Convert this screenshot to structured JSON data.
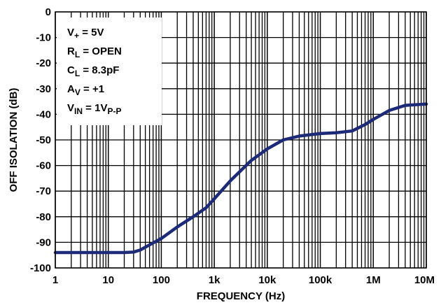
{
  "chart_data": {
    "type": "line",
    "xlabel": "FREQUENCY (Hz)",
    "ylabel": "OFF ISOLATION (dB)",
    "x_scale": "log",
    "xlim": [
      1,
      10000000
    ],
    "ylim": [
      -100,
      0
    ],
    "grid": true,
    "x_ticks": [
      {
        "value": 1,
        "label": "1"
      },
      {
        "value": 10,
        "label": "10"
      },
      {
        "value": 100,
        "label": "100"
      },
      {
        "value": 1000,
        "label": "1k"
      },
      {
        "value": 10000,
        "label": "10k"
      },
      {
        "value": 100000,
        "label": "100k"
      },
      {
        "value": 1000000,
        "label": "1M"
      },
      {
        "value": 10000000,
        "label": "10M"
      }
    ],
    "y_ticks": [
      {
        "value": 0,
        "label": "0"
      },
      {
        "value": -10,
        "label": "-10"
      },
      {
        "value": -20,
        "label": "-20"
      },
      {
        "value": -30,
        "label": "-30"
      },
      {
        "value": -40,
        "label": "-40"
      },
      {
        "value": -50,
        "label": "-50"
      },
      {
        "value": -60,
        "label": "-60"
      },
      {
        "value": -70,
        "label": "-70"
      },
      {
        "value": -80,
        "label": "-80"
      },
      {
        "value": -90,
        "label": "-90"
      },
      {
        "value": -100,
        "label": "-100"
      }
    ],
    "series": [
      {
        "color": "#1c2a78",
        "x": [
          1,
          10,
          20,
          30,
          40,
          60,
          100,
          200,
          400,
          700,
          1000,
          2000,
          5000,
          10000,
          20000,
          40000,
          100000,
          200000,
          400000,
          700000,
          1000000,
          2000000,
          4000000,
          10000000
        ],
        "y": [
          -94,
          -94,
          -94,
          -93.8,
          -93,
          -91,
          -88.5,
          -84,
          -80,
          -76.5,
          -73,
          -66,
          -58,
          -53.5,
          -50,
          -48.5,
          -47.5,
          -47.2,
          -46.5,
          -44,
          -42,
          -38.5,
          -36.5,
          -36
        ]
      }
    ],
    "annotations": [
      {
        "main": "V",
        "sub": "+",
        "tail": " = 5V"
      },
      {
        "main": "R",
        "sub": "L",
        "tail": " = OPEN"
      },
      {
        "main": "C",
        "sub": "L",
        "tail": " = 8.3pF"
      },
      {
        "main": "A",
        "sub": "V",
        "tail": " = +1"
      },
      {
        "main": "V",
        "sub": "IN",
        "tail": " = 1V",
        "sub2": "P-P"
      }
    ]
  }
}
